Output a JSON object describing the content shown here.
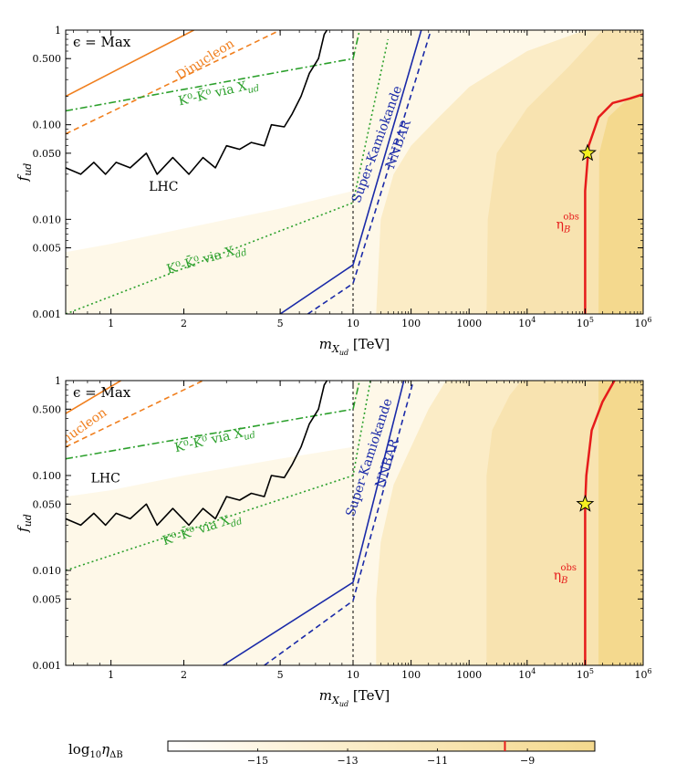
{
  "chart_data": [
    {
      "type": "line",
      "panel": "top",
      "annotation": "ϵ = Max",
      "xlabel_main": "m",
      "xlabel_sub": "X",
      "xlabel_subsub": "ud",
      "xlabel_unit": "[TeV]",
      "ylabel_main": "f",
      "ylabel_sub": "ud",
      "xscale": "log",
      "yscale": "log",
      "xlim": [
        0.65,
        1000000
      ],
      "ylim": [
        0.001,
        1
      ],
      "x_split": 10,
      "xticks": [
        {
          "v": 1,
          "label": "1"
        },
        {
          "v": 2,
          "label": "2"
        },
        {
          "v": 5,
          "label": "5"
        },
        {
          "v": 10,
          "label": "10"
        },
        {
          "v": 100,
          "label": "100"
        },
        {
          "v": 1000,
          "label": "1000"
        },
        {
          "v": 10000,
          "label": "10",
          "exp": "4"
        },
        {
          "v": 100000,
          "label": "10",
          "exp": "5"
        },
        {
          "v": 1000000,
          "label": "10",
          "exp": "6"
        }
      ],
      "yticks": [
        {
          "v": 1,
          "label": "1"
        },
        {
          "v": 0.5,
          "label": "0.500"
        },
        {
          "v": 0.1,
          "label": "0.100"
        },
        {
          "v": 0.05,
          "label": "0.050"
        },
        {
          "v": 0.01,
          "label": "0.010"
        },
        {
          "v": 0.005,
          "label": "0.005"
        },
        {
          "v": 0.001,
          "label": "0.001"
        }
      ],
      "shading": {
        "colors": [
          "#fef8e8",
          "#fbecc6",
          "#f8e3b0",
          "#f4d98e"
        ],
        "regions": [
          {
            "level": 0,
            "boundary": [
              [
                0.65,
                0.0045
              ],
              [
                1,
                0.0055
              ],
              [
                2,
                0.008
              ],
              [
                5,
                0.013
              ],
              [
                10,
                0.02
              ],
              [
                10,
                1
              ],
              [
                0.65,
                1
              ]
            ],
            "mode": "below-light"
          },
          {
            "level": 1,
            "x": [
              [
                25,
                0.001
              ],
              [
                30,
                0.01
              ],
              [
                50,
                0.03
              ],
              [
                100,
                0.06
              ],
              [
                300,
                0.12
              ],
              [
                1000,
                0.25
              ],
              [
                10000,
                0.6
              ],
              [
                100000,
                1
              ]
            ]
          },
          {
            "level": 2,
            "x": [
              [
                2000,
                0.001
              ],
              [
                2100,
                0.01
              ],
              [
                3000,
                0.05
              ],
              [
                10000,
                0.15
              ],
              [
                50000,
                0.4
              ],
              [
                200000,
                1
              ]
            ]
          },
          {
            "level": 3,
            "x": [
              [
                170000,
                0.001
              ],
              [
                175000,
                0.05
              ],
              [
                250000,
                0.12
              ],
              [
                600000,
                0.2
              ],
              [
                1000000,
                0.22
              ]
            ]
          }
        ]
      },
      "series": [
        {
          "name": "Dinucleon",
          "color": "#f07f1e",
          "dash": "",
          "points": [
            [
              0.65,
              0.2
            ],
            [
              2.2,
              1
            ]
          ]
        },
        {
          "name": "Dinucleon",
          "color": "#f07f1e",
          "dash": "6,4",
          "points": [
            [
              0.65,
              0.08
            ],
            [
              5,
              1
            ]
          ]
        },
        {
          "name": "K⁰-K̄⁰ via X",
          "sub": "ud",
          "color": "#2ca02c",
          "dash": "8,3,2,3",
          "points": [
            [
              0.65,
              0.14
            ],
            [
              10,
              0.5
            ],
            [
              13,
              1
            ]
          ]
        },
        {
          "name": "K⁰-K̄⁰ via X",
          "sub": "dd",
          "color": "#2ca02c",
          "dash": "2,3",
          "points": [
            [
              0.65,
              0.001
            ],
            [
              10,
              0.015
            ],
            [
              40,
              0.8
            ]
          ]
        },
        {
          "name": "LHC",
          "color": "#000000",
          "dash": "",
          "points": [
            [
              0.65,
              0.035
            ],
            [
              0.75,
              0.03
            ],
            [
              0.85,
              0.04
            ],
            [
              0.95,
              0.03
            ],
            [
              1.05,
              0.04
            ],
            [
              1.2,
              0.035
            ],
            [
              1.4,
              0.05
            ],
            [
              1.55,
              0.03
            ],
            [
              1.8,
              0.045
            ],
            [
              2.1,
              0.03
            ],
            [
              2.4,
              0.045
            ],
            [
              2.7,
              0.035
            ],
            [
              3.0,
              0.06
            ],
            [
              3.4,
              0.055
            ],
            [
              3.8,
              0.065
            ],
            [
              4.3,
              0.06
            ],
            [
              4.6,
              0.1
            ],
            [
              5.2,
              0.095
            ],
            [
              5.6,
              0.13
            ],
            [
              6.1,
              0.2
            ],
            [
              6.6,
              0.35
            ],
            [
              7.2,
              0.5
            ],
            [
              7.6,
              0.9
            ],
            [
              7.8,
              1
            ]
          ]
        },
        {
          "name": "Super-Kamiokande",
          "color": "#1a2aa8",
          "dash": "",
          "points": [
            [
              5,
              0.001
            ],
            [
              10,
              0.0033
            ],
            [
              150,
              1
            ]
          ]
        },
        {
          "name": "NNBAR",
          "color": "#1a2aa8",
          "dash": "6,4",
          "points": [
            [
              6.5,
              0.001
            ],
            [
              10,
              0.0021
            ],
            [
              220,
              1
            ]
          ]
        },
        {
          "name": "η_B^obs",
          "color": "#e61b1b",
          "dash": "",
          "width": 2.5,
          "points": [
            [
              100000,
              0.001
            ],
            [
              100000,
              0.02
            ],
            [
              115000,
              0.06
            ],
            [
              170000,
              0.12
            ],
            [
              300000,
              0.17
            ],
            [
              600000,
              0.19
            ],
            [
              1000000,
              0.21
            ]
          ]
        }
      ],
      "vline": {
        "x": 10,
        "dash": "3,3"
      },
      "star": {
        "x": 110000,
        "y": 0.05
      },
      "labels": [
        {
          "text": "Dinucleon",
          "x": 2.5,
          "y": 0.45,
          "color": "#f07f1e",
          "rot": -32
        },
        {
          "text": "K⁰-K̄⁰ via X",
          "sub": "ud",
          "x": 2.8,
          "y": 0.2,
          "color": "#2ca02c",
          "rot": -13
        },
        {
          "text": "LHC",
          "x": 1.65,
          "y": 0.02,
          "color": "#000000",
          "rot": 0
        },
        {
          "text": "K⁰-K̄⁰ via X",
          "sub": "dd",
          "x": 2.5,
          "y": 0.0035,
          "color": "#2ca02c",
          "rot": -16
        },
        {
          "text": "Super-Kamiokande",
          "x": 30,
          "y": 0.06,
          "color": "#1a2aa8",
          "rot": -70
        },
        {
          "text": "NNBAR",
          "x": 70,
          "y": 0.06,
          "color": "#1a2aa8",
          "rot": -70
        },
        {
          "text": "η",
          "sub": "B",
          "sup": "obs",
          "x": 50000,
          "y": 0.008,
          "color": "#e61b1b",
          "rot": 0
        }
      ]
    },
    {
      "type": "line",
      "panel": "bottom",
      "annotation": "ϵ = Max",
      "xlabel_main": "m",
      "xlabel_sub": "X",
      "xlabel_subsub": "ud",
      "xlabel_unit": "[TeV]",
      "ylabel_main": "f",
      "ylabel_sub": "ud",
      "xscale": "log",
      "yscale": "log",
      "xlim": [
        0.65,
        1000000
      ],
      "ylim": [
        0.001,
        1
      ],
      "x_split": 10,
      "xticks": [
        {
          "v": 1,
          "label": "1"
        },
        {
          "v": 2,
          "label": "2"
        },
        {
          "v": 5,
          "label": "5"
        },
        {
          "v": 10,
          "label": "10"
        },
        {
          "v": 100,
          "label": "100"
        },
        {
          "v": 1000,
          "label": "1000"
        },
        {
          "v": 10000,
          "label": "10",
          "exp": "4"
        },
        {
          "v": 100000,
          "label": "10",
          "exp": "5"
        },
        {
          "v": 1000000,
          "label": "10",
          "exp": "6"
        }
      ],
      "yticks": [
        {
          "v": 1,
          "label": "1"
        },
        {
          "v": 0.5,
          "label": "0.500"
        },
        {
          "v": 0.1,
          "label": "0.100"
        },
        {
          "v": 0.05,
          "label": "0.050"
        },
        {
          "v": 0.01,
          "label": "0.010"
        },
        {
          "v": 0.005,
          "label": "0.005"
        },
        {
          "v": 0.001,
          "label": "0.001"
        }
      ],
      "shading": {
        "colors": [
          "#fef8e8",
          "#fbecc6",
          "#f8e3b0",
          "#f4d98e"
        ],
        "regions": [
          {
            "level": 0,
            "boundary": [
              [
                0.65,
                0.06
              ],
              [
                1,
                0.07
              ],
              [
                2,
                0.1
              ],
              [
                5,
                0.15
              ],
              [
                10,
                0.2
              ],
              [
                10,
                1
              ],
              [
                0.65,
                1
              ]
            ],
            "mode": "below-light"
          },
          {
            "level": 1,
            "x": [
              [
                25,
                0.001
              ],
              [
                25,
                0.005
              ],
              [
                30,
                0.02
              ],
              [
                50,
                0.08
              ],
              [
                100,
                0.2
              ],
              [
                200,
                0.5
              ],
              [
                400,
                1
              ]
            ]
          },
          {
            "level": 2,
            "x": [
              [
                2000,
                0.001
              ],
              [
                2000,
                0.1
              ],
              [
                2500,
                0.3
              ],
              [
                5000,
                0.7
              ],
              [
                8000,
                1
              ]
            ]
          },
          {
            "level": 3,
            "x": [
              [
                170000,
                0.001
              ],
              [
                170000,
                1
              ]
            ]
          }
        ]
      },
      "series": [
        {
          "name": "Dinucleon",
          "color": "#f07f1e",
          "dash": "",
          "points": [
            [
              0.65,
              0.45
            ],
            [
              1.1,
              1
            ]
          ]
        },
        {
          "name": "Dinucleon",
          "color": "#f07f1e",
          "dash": "6,4",
          "points": [
            [
              0.65,
              0.2
            ],
            [
              2.4,
              1
            ]
          ]
        },
        {
          "name": "K⁰-K̄⁰ via X",
          "sub": "ud",
          "color": "#2ca02c",
          "dash": "8,3,2,3",
          "points": [
            [
              0.65,
              0.15
            ],
            [
              10,
              0.5
            ],
            [
              13,
              1
            ]
          ]
        },
        {
          "name": "K⁰-K̄⁰ via X",
          "sub": "dd",
          "color": "#2ca02c",
          "dash": "2,3",
          "points": [
            [
              0.65,
              0.01
            ],
            [
              10,
              0.1
            ],
            [
              20,
              1
            ]
          ]
        },
        {
          "name": "LHC",
          "color": "#000000",
          "dash": "",
          "points": [
            [
              0.65,
              0.035
            ],
            [
              0.75,
              0.03
            ],
            [
              0.85,
              0.04
            ],
            [
              0.95,
              0.03
            ],
            [
              1.05,
              0.04
            ],
            [
              1.2,
              0.035
            ],
            [
              1.4,
              0.05
            ],
            [
              1.55,
              0.03
            ],
            [
              1.8,
              0.045
            ],
            [
              2.1,
              0.03
            ],
            [
              2.4,
              0.045
            ],
            [
              2.7,
              0.035
            ],
            [
              3.0,
              0.06
            ],
            [
              3.4,
              0.055
            ],
            [
              3.8,
              0.065
            ],
            [
              4.3,
              0.06
            ],
            [
              4.6,
              0.1
            ],
            [
              5.2,
              0.095
            ],
            [
              5.6,
              0.13
            ],
            [
              6.1,
              0.2
            ],
            [
              6.6,
              0.35
            ],
            [
              7.2,
              0.5
            ],
            [
              7.6,
              0.9
            ],
            [
              7.8,
              1
            ]
          ]
        },
        {
          "name": "Super-Kamiokande",
          "color": "#1a2aa8",
          "dash": "",
          "points": [
            [
              2.9,
              0.001
            ],
            [
              10,
              0.0075
            ],
            [
              75,
              1
            ]
          ]
        },
        {
          "name": "NNBAR",
          "color": "#1a2aa8",
          "dash": "6,4",
          "points": [
            [
              4.3,
              0.001
            ],
            [
              10,
              0.0048
            ],
            [
              110,
              1
            ]
          ]
        },
        {
          "name": "η_B^obs",
          "color": "#e61b1b",
          "dash": "",
          "width": 2.5,
          "points": [
            [
              100000,
              0.001
            ],
            [
              100000,
              0.05
            ],
            [
              105000,
              0.1
            ],
            [
              130000,
              0.3
            ],
            [
              200000,
              0.6
            ],
            [
              320000,
              1
            ]
          ]
        }
      ],
      "vline": {
        "x": 10,
        "dash": "3,3"
      },
      "star": {
        "x": 100000,
        "y": 0.05
      },
      "labels": [
        {
          "text": "Dinucleon",
          "x": 0.75,
          "y": 0.28,
          "color": "#f07f1e",
          "rot": -35
        },
        {
          "text": "K⁰-K̄⁰ via X",
          "sub": "ud",
          "x": 2.7,
          "y": 0.22,
          "color": "#2ca02c",
          "rot": -13
        },
        {
          "text": "LHC",
          "x": 0.95,
          "y": 0.085,
          "color": "#000000",
          "rot": 0
        },
        {
          "text": "K⁰-K̄⁰ via X",
          "sub": "dd",
          "x": 2.4,
          "y": 0.025,
          "color": "#2ca02c",
          "rot": -18
        },
        {
          "text": "Super-Kamiokande",
          "x": 22,
          "y": 0.15,
          "color": "#1a2aa8",
          "rot": -72
        },
        {
          "text": "NNBAR",
          "x": 45,
          "y": 0.13,
          "color": "#1a2aa8",
          "rot": -72
        },
        {
          "text": "η",
          "sub": "B",
          "sup": "obs",
          "x": 45000,
          "y": 0.008,
          "color": "#e61b1b",
          "rot": 0
        }
      ]
    }
  ],
  "colorbar": {
    "label_main": "log",
    "label_sub": "10",
    "label_var": "η",
    "label_var_sub": "ΔB",
    "vmin": -17,
    "vmax": -7.5,
    "ticks": [
      {
        "v": -15,
        "label": "−15"
      },
      {
        "v": -13,
        "label": "−13"
      },
      {
        "v": -11,
        "label": "−11"
      },
      {
        "v": -9,
        "label": "−9"
      }
    ],
    "marker": -9.5,
    "stops": [
      "#ffffff",
      "#fef8e8",
      "#fbecc6",
      "#f8e3b0",
      "#f4d98e"
    ]
  }
}
